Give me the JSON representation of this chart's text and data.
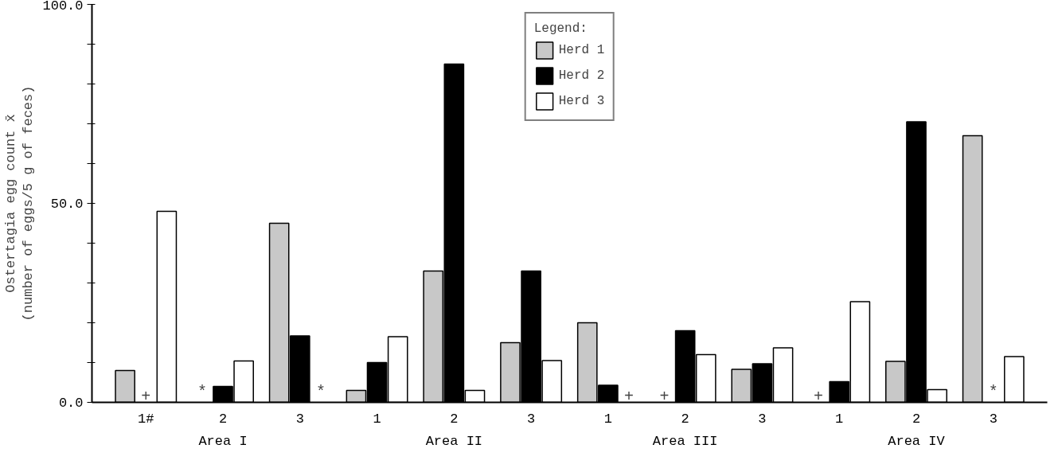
{
  "chart_data": {
    "type": "bar",
    "ylabel": "Ostertagia egg count x̄\n(number of eggs/5 g of feces)",
    "categories": [
      "1#",
      "2",
      "3",
      "1",
      "2",
      "3",
      "1",
      "2",
      "3",
      "1",
      "2",
      "3"
    ],
    "series": [
      {
        "name": "Herd 1",
        "color": "#c8c8c8",
        "values": [
          8,
          null,
          45,
          3,
          33,
          15,
          20,
          null,
          8.3,
          null,
          10.3,
          67
        ],
        "value_labels": [
          null,
          "*",
          null,
          null,
          null,
          null,
          null,
          "+",
          null,
          "+",
          null,
          null
        ]
      },
      {
        "name": "Herd 2",
        "color": "#000000",
        "values": [
          null,
          4,
          16.7,
          10,
          85,
          33,
          4.3,
          18,
          9.7,
          5.2,
          70.5,
          null
        ],
        "value_labels": [
          "+",
          null,
          null,
          null,
          null,
          null,
          null,
          null,
          null,
          null,
          null,
          "*"
        ]
      },
      {
        "name": "Herd 3",
        "color": "#ffffff",
        "values": [
          48,
          10.4,
          null,
          16.5,
          3,
          10.5,
          null,
          12,
          13.7,
          25.3,
          3.2,
          11.5
        ],
        "value_labels": [
          null,
          null,
          "*",
          null,
          null,
          null,
          "+",
          null,
          null,
          null,
          null,
          null
        ]
      }
    ],
    "annotations": [
      "Area I",
      "Area II",
      "Area III",
      "Area IV"
    ],
    "legend_title": "Legend:",
    "legend": "top",
    "grid": false,
    "ylim": [
      0,
      100
    ],
    "yticks": [
      {
        "value": 0,
        "label": "0.0"
      },
      {
        "value": 10,
        "label": null
      },
      {
        "value": 20,
        "label": null
      },
      {
        "value": 30,
        "label": null
      },
      {
        "value": 40,
        "label": null
      },
      {
        "value": 50,
        "label": "50.0"
      },
      {
        "value": 60,
        "label": null
      },
      {
        "value": 70,
        "label": null
      },
      {
        "value": 80,
        "label": null
      },
      {
        "value": 90,
        "label": null
      },
      {
        "value": 100,
        "label": "100.0"
      }
    ]
  }
}
